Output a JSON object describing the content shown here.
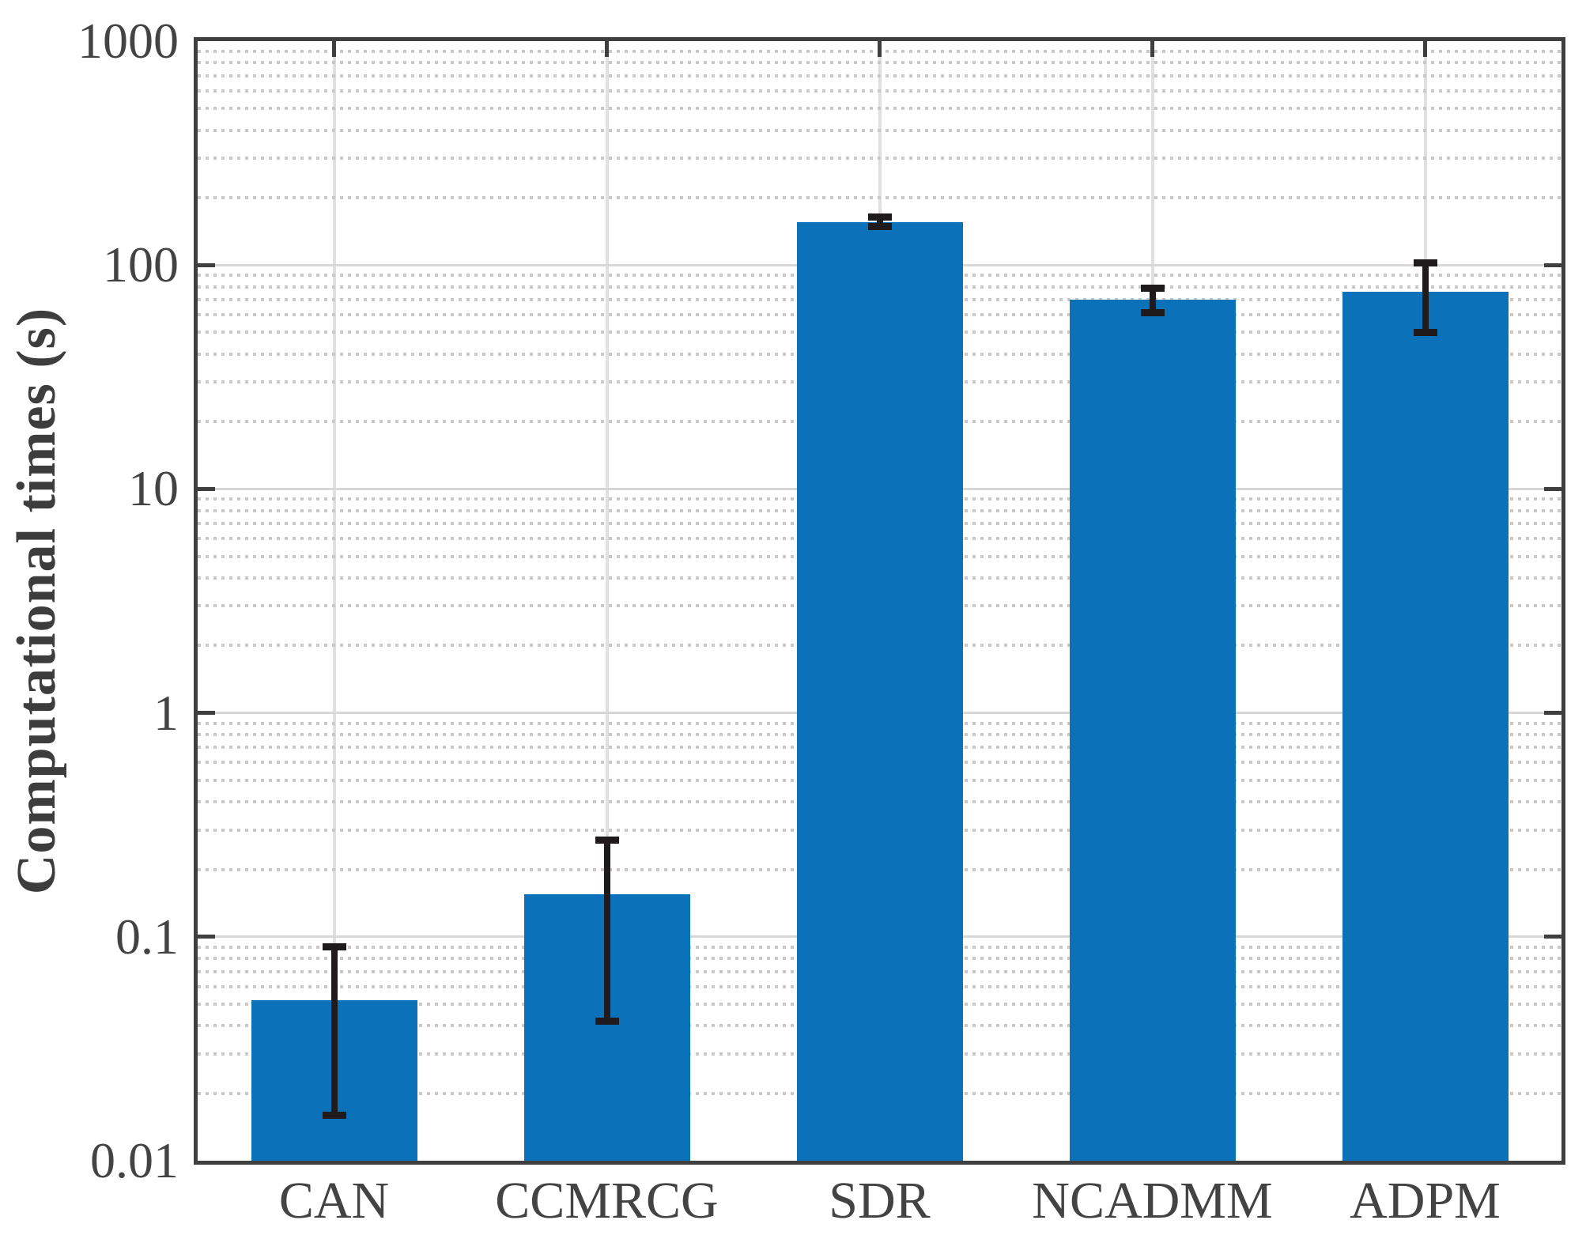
{
  "chart_data": {
    "type": "bar",
    "yscale": "log",
    "title": "",
    "xlabel": "",
    "ylabel": "Computational times (s)",
    "categories": [
      "CAN",
      "CCMRCG",
      "SDR",
      "NCADMM",
      "ADPM"
    ],
    "values": [
      0.052,
      0.155,
      156,
      70,
      76
    ],
    "error_low": [
      0.016,
      0.042,
      149,
      61,
      50
    ],
    "error_high": [
      0.09,
      0.27,
      164,
      79,
      102
    ],
    "ylim": [
      0.01,
      1000
    ],
    "ytick_labels": [
      "1000",
      "100",
      "10",
      "1",
      "0.1",
      "0.01"
    ],
    "grid": {
      "horizontal_major": "solid",
      "horizontal_minor": "dotted",
      "vertical_at_categories": "solid",
      "minor_positions_per_decade": [
        2,
        3,
        4,
        5,
        6,
        7,
        8,
        9
      ]
    },
    "legend": "none",
    "colors": {
      "bar": "#0b72b9",
      "error_bar": "#1f1b1c",
      "axis": "#3f3f3f",
      "text": "#434343",
      "grid_major": "#d8d8d8",
      "grid_minor": "#c9c9c9",
      "grid_vertical": "#e0e0e0",
      "background": "#ffffff"
    }
  }
}
